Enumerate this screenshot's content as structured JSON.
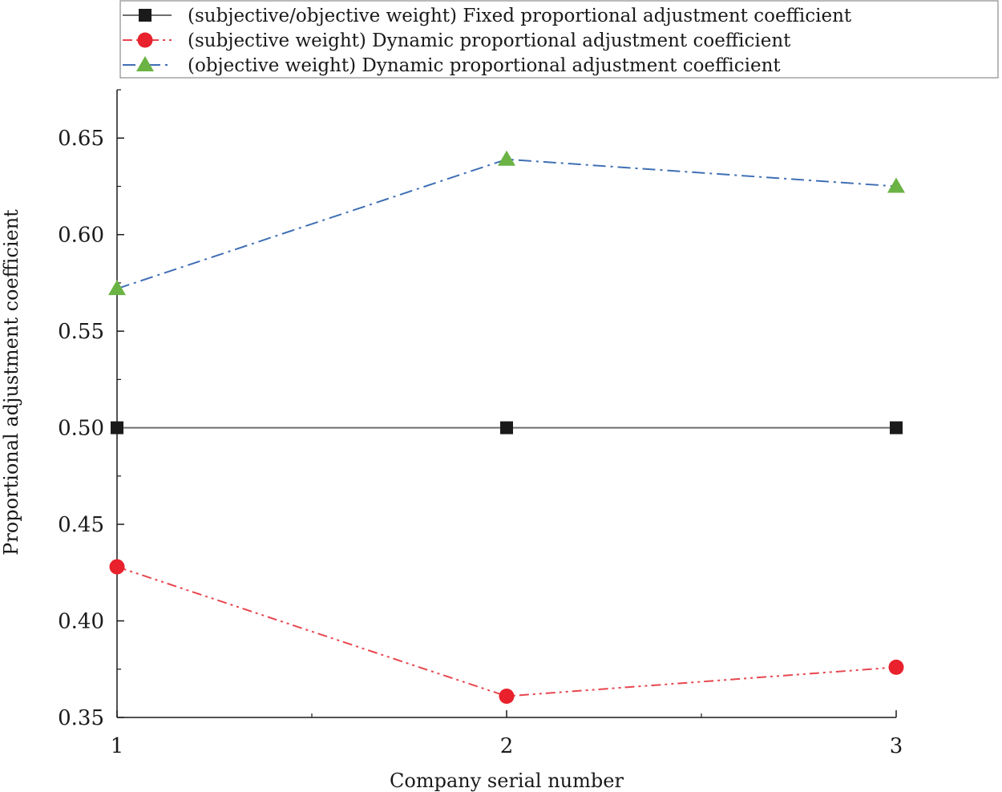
{
  "chart_data": {
    "type": "line",
    "title": "",
    "xlabel": "Company serial number",
    "ylabel": "Proportional adjustment coefficient",
    "x": [
      1,
      2,
      3
    ],
    "x_ticks": [
      "1",
      "2",
      "3"
    ],
    "xlim": [
      1,
      3
    ],
    "ylim": [
      0.35,
      0.675
    ],
    "y_ticks": [
      "0.35",
      "0.40",
      "0.45",
      "0.50",
      "0.55",
      "0.60",
      "0.65"
    ],
    "grid": false,
    "legend_position": "top",
    "series": [
      {
        "name": "(subjective/objective weight) Fixed proportional adjustment coefficient",
        "values": [
          0.5,
          0.5,
          0.5
        ],
        "color": "#6e6e6e",
        "marker_color": "#1a1a1a",
        "marker": "square",
        "line_style": "solid"
      },
      {
        "name": "(subjective weight) Dynamic proportional adjustment coefficient",
        "values": [
          0.428,
          0.361,
          0.376
        ],
        "color": "#e8464f",
        "marker_color": "#e8212c",
        "marker": "circle",
        "line_style": "dash-dot-dot"
      },
      {
        "name": "(objective weight) Dynamic proportional adjustment coefficient",
        "values": [
          0.572,
          0.639,
          0.625
        ],
        "color": "#3f6fb5",
        "marker_color": "#6ab344",
        "marker": "triangle",
        "line_style": "dash-dot"
      }
    ]
  }
}
